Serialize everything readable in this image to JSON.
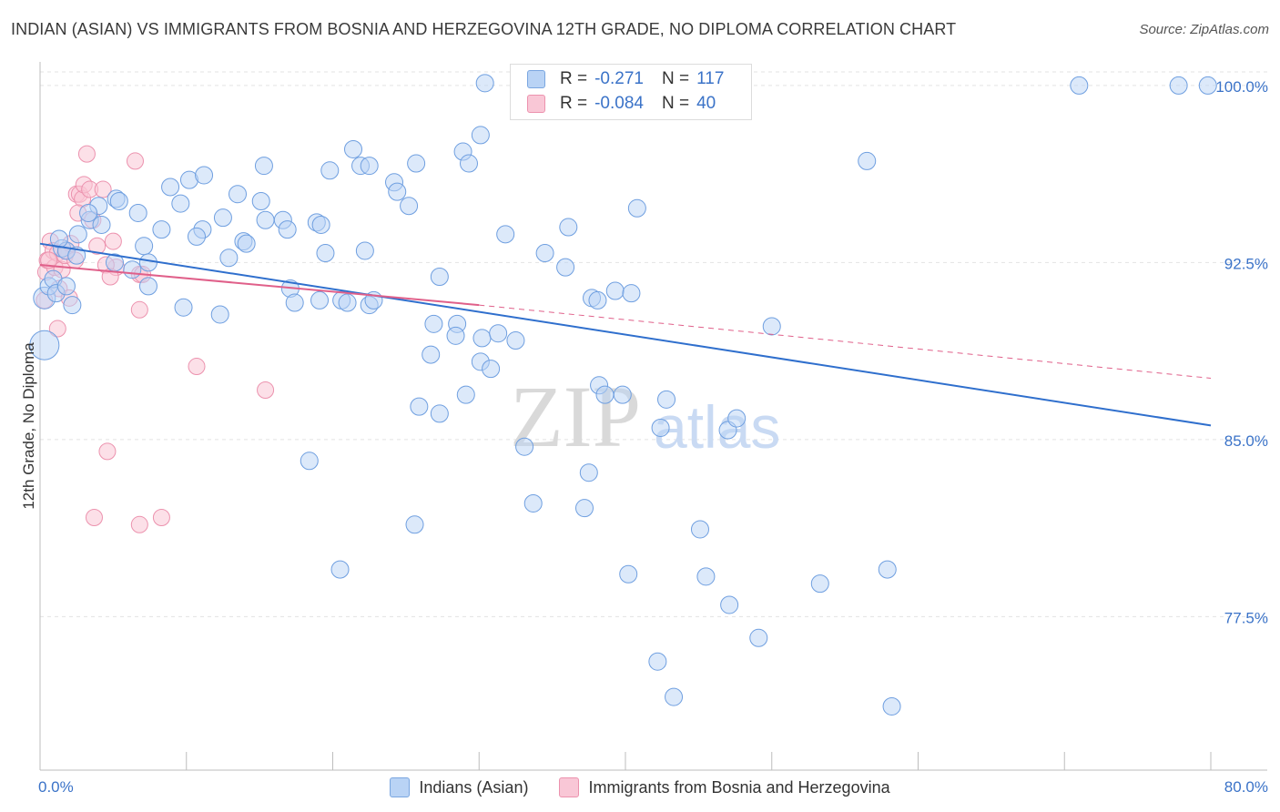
{
  "title": "INDIAN (ASIAN) VS IMMIGRANTS FROM BOSNIA AND HERZEGOVINA 12TH GRADE, NO DIPLOMA CORRELATION CHART",
  "source": "Source: ZipAtlas.com",
  "watermark": {
    "zip": "ZIP",
    "atlas": "atlas"
  },
  "colors": {
    "blue": "#6f9fe0",
    "blue_fill": "#b9d3f5",
    "blue_line": "#2f6fcd",
    "pink": "#ec92ae",
    "pink_fill": "#f9c7d6",
    "pink_line": "#e0608a",
    "axis_text": "#3b73c8"
  },
  "legend_box": {
    "series1": {
      "r_label": "R =",
      "r_value": "-0.271",
      "n_label": "N =",
      "n_value": "117"
    },
    "series2": {
      "r_label": "R =",
      "r_value": "-0.084",
      "n_label": "N =",
      "n_value": "40"
    }
  },
  "chart_data": {
    "type": "scatter",
    "title": "INDIAN (ASIAN) VS IMMIGRANTS FROM BOSNIA AND HERZEGOVINA 12TH GRADE, NO DIPLOMA CORRELATION CHART",
    "xlabel": "",
    "ylabel": "12th Grade, No Diploma",
    "xlim": [
      0,
      80
    ],
    "ylim": [
      71,
      101
    ],
    "x_tick_labels": [
      "0.0%",
      "80.0%"
    ],
    "y_ticks": [
      77.5,
      85.0,
      92.5,
      100.0
    ],
    "y_tick_labels": [
      "77.5%",
      "85.0%",
      "92.5%",
      "100.0%"
    ],
    "grid": true,
    "legend": [
      "Indians (Asian)",
      "Immigrants from Bosnia and Herzegovina"
    ],
    "series": [
      {
        "name": "Indians (Asian)",
        "r": -0.271,
        "n": 117,
        "trend": {
          "x0": 0,
          "y0": 93.3,
          "x1": 80,
          "y1": 85.6
        },
        "points": [
          [
            0.3,
            91.0
          ],
          [
            0.3,
            89.0
          ],
          [
            0.6,
            91.5
          ],
          [
            0.9,
            91.8
          ],
          [
            1.1,
            91.2
          ],
          [
            1.5,
            93.1
          ],
          [
            1.8,
            93.0
          ],
          [
            2.6,
            93.7
          ],
          [
            3.4,
            94.3
          ],
          [
            4.0,
            94.9
          ],
          [
            3.3,
            94.6
          ],
          [
            4.2,
            94.1
          ],
          [
            1.3,
            93.5
          ],
          [
            2.5,
            92.8
          ],
          [
            5.2,
            95.2
          ],
          [
            5.4,
            95.1
          ],
          [
            5.1,
            92.5
          ],
          [
            6.7,
            94.6
          ],
          [
            7.1,
            93.2
          ],
          [
            7.4,
            92.5
          ],
          [
            6.3,
            92.2
          ],
          [
            8.3,
            93.9
          ],
          [
            9.6,
            95.0
          ],
          [
            8.9,
            95.7
          ],
          [
            10.2,
            96.0
          ],
          [
            11.2,
            96.2
          ],
          [
            11.1,
            93.9
          ],
          [
            10.7,
            93.6
          ],
          [
            12.5,
            94.4
          ],
          [
            12.9,
            92.7
          ],
          [
            13.5,
            95.4
          ],
          [
            13.9,
            93.4
          ],
          [
            14.1,
            93.3
          ],
          [
            15.1,
            95.1
          ],
          [
            15.4,
            94.3
          ],
          [
            15.3,
            96.6
          ],
          [
            16.6,
            94.3
          ],
          [
            16.9,
            93.9
          ],
          [
            18.9,
            94.2
          ],
          [
            19.2,
            94.1
          ],
          [
            19.5,
            92.9
          ],
          [
            19.8,
            96.4
          ],
          [
            21.4,
            97.3
          ],
          [
            22.2,
            93.0
          ],
          [
            21.9,
            96.6
          ],
          [
            22.5,
            96.6
          ],
          [
            24.2,
            95.9
          ],
          [
            24.4,
            95.5
          ],
          [
            25.2,
            94.9
          ],
          [
            25.7,
            96.7
          ],
          [
            28.9,
            97.2
          ],
          [
            29.3,
            96.7
          ],
          [
            30.1,
            97.9
          ],
          [
            30.4,
            100.1
          ],
          [
            31.8,
            93.7
          ],
          [
            34.5,
            92.9
          ],
          [
            36.1,
            94.0
          ],
          [
            35.9,
            92.3
          ],
          [
            37.7,
            91.0
          ],
          [
            38.1,
            90.9
          ],
          [
            39.3,
            91.3
          ],
          [
            40.4,
            91.2
          ],
          [
            40.8,
            94.8
          ],
          [
            7.4,
            91.5
          ],
          [
            17.1,
            91.4
          ],
          [
            17.4,
            90.8
          ],
          [
            19.1,
            90.9
          ],
          [
            20.6,
            90.9
          ],
          [
            21.0,
            90.8
          ],
          [
            22.5,
            90.7
          ],
          [
            22.8,
            90.9
          ],
          [
            27.3,
            91.9
          ],
          [
            28.5,
            89.9
          ],
          [
            30.2,
            89.3
          ],
          [
            31.3,
            89.5
          ],
          [
            32.5,
            89.2
          ],
          [
            26.9,
            89.9
          ],
          [
            26.7,
            88.6
          ],
          [
            28.4,
            89.4
          ],
          [
            30.1,
            88.3
          ],
          [
            30.8,
            88.0
          ],
          [
            25.9,
            86.4
          ],
          [
            27.3,
            86.1
          ],
          [
            29.1,
            86.9
          ],
          [
            33.7,
            82.3
          ],
          [
            37.2,
            82.1
          ],
          [
            37.5,
            83.6
          ],
          [
            38.2,
            87.3
          ],
          [
            38.6,
            86.9
          ],
          [
            39.8,
            86.9
          ],
          [
            42.4,
            85.5
          ],
          [
            42.8,
            86.7
          ],
          [
            47.0,
            85.4
          ],
          [
            47.6,
            85.9
          ],
          [
            50.0,
            89.8
          ],
          [
            45.1,
            81.2
          ],
          [
            40.2,
            79.3
          ],
          [
            45.5,
            79.2
          ],
          [
            47.1,
            78.0
          ],
          [
            53.3,
            78.9
          ],
          [
            49.1,
            76.6
          ],
          [
            42.2,
            75.6
          ],
          [
            43.3,
            74.1
          ],
          [
            58.2,
            73.7
          ],
          [
            56.5,
            96.8
          ],
          [
            57.9,
            79.5
          ],
          [
            71.0,
            100.0
          ],
          [
            77.8,
            100.0
          ],
          [
            79.8,
            100.0
          ],
          [
            1.8,
            91.5
          ],
          [
            2.2,
            90.7
          ],
          [
            9.8,
            90.6
          ],
          [
            12.3,
            90.3
          ],
          [
            18.4,
            84.1
          ],
          [
            20.5,
            79.5
          ],
          [
            25.6,
            81.4
          ],
          [
            33.1,
            84.7
          ]
        ]
      },
      {
        "name": "Immigrants from Bosnia and Herzegovina",
        "r": -0.084,
        "n": 40,
        "trend": {
          "x0": 0,
          "y0": 92.4,
          "x1": 30,
          "y1": 90.7,
          "dash_x1": 80,
          "dash_y1": 87.6
        },
        "points": [
          [
            0.3,
            90.9
          ],
          [
            0.4,
            92.1
          ],
          [
            0.5,
            92.6
          ],
          [
            0.7,
            93.4
          ],
          [
            0.9,
            93.0
          ],
          [
            1.0,
            92.3
          ],
          [
            1.2,
            92.9
          ],
          [
            1.3,
            91.4
          ],
          [
            1.5,
            92.2
          ],
          [
            1.7,
            92.8
          ],
          [
            1.8,
            93.0
          ],
          [
            2.0,
            91.0
          ],
          [
            2.1,
            93.3
          ],
          [
            2.4,
            92.6
          ],
          [
            2.5,
            95.4
          ],
          [
            2.7,
            95.4
          ],
          [
            2.9,
            95.2
          ],
          [
            3.0,
            95.8
          ],
          [
            3.2,
            97.1
          ],
          [
            3.4,
            95.6
          ],
          [
            3.6,
            94.3
          ],
          [
            3.9,
            93.2
          ],
          [
            4.3,
            95.6
          ],
          [
            5.0,
            93.4
          ],
          [
            5.2,
            92.3
          ],
          [
            6.5,
            96.8
          ],
          [
            6.8,
            92.0
          ],
          [
            6.8,
            90.5
          ],
          [
            4.5,
            92.4
          ],
          [
            2.6,
            94.6
          ],
          [
            0.6,
            92.6
          ],
          [
            1.2,
            89.7
          ],
          [
            4.8,
            91.9
          ],
          [
            7.0,
            92.0
          ],
          [
            10.7,
            88.1
          ],
          [
            15.4,
            87.1
          ],
          [
            4.6,
            84.5
          ],
          [
            3.7,
            81.7
          ],
          [
            6.8,
            81.4
          ],
          [
            8.3,
            81.7
          ]
        ]
      }
    ]
  }
}
